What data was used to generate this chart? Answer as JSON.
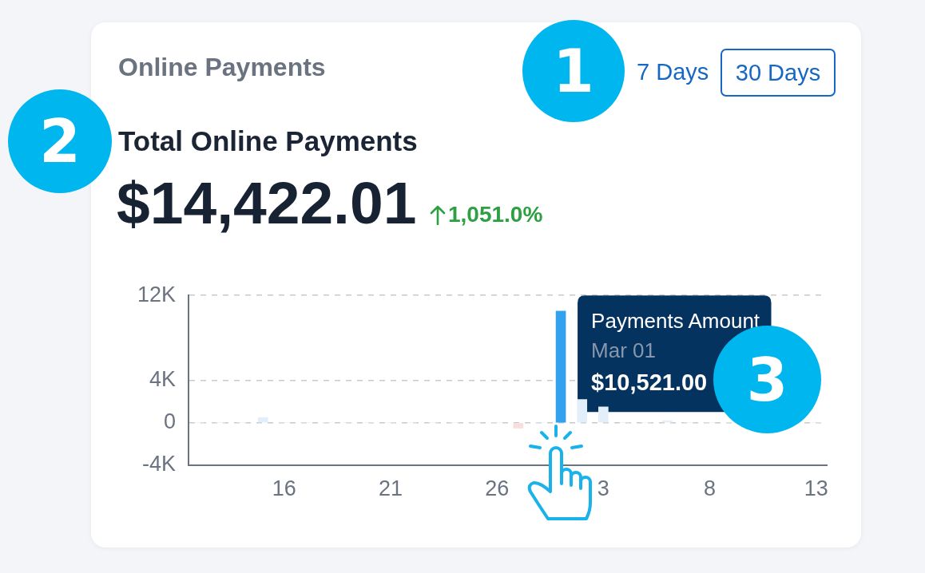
{
  "chart_data": {
    "type": "bar",
    "title": "Online Payments",
    "subtitle": "Total Online Payments",
    "annotations": [
      "7 Days",
      "30 Days",
      "$14,422.01",
      "1,051.0%",
      "Payments Amount",
      "Mar 01",
      "$10,521.00",
      "1",
      "2",
      "3"
    ],
    "categories": [
      null,
      null,
      null,
      null,
      "16",
      null,
      null,
      null,
      null,
      "21",
      null,
      null,
      null,
      null,
      "26",
      null,
      null,
      null,
      null,
      "3",
      null,
      null,
      null,
      null,
      "8",
      null,
      null,
      null,
      null,
      "13"
    ],
    "series": [
      {
        "values": [
          0,
          0,
          0,
          500,
          0,
          0,
          0,
          0,
          0,
          0,
          0,
          0,
          0,
          0,
          0,
          -500,
          0,
          10521,
          2200,
          1500,
          0,
          0,
          200,
          0,
          0,
          0,
          0,
          0,
          0,
          0
        ],
        "colors": [
          "#e2effb",
          "#e2effb",
          "#e2effb",
          "#e2effb",
          "#e2effb",
          "#e2effb",
          "#e2effb",
          "#e2effb",
          "#e2effb",
          "#e2effb",
          "#e2effb",
          "#e2effb",
          "#e2effb",
          "#e2effb",
          "#e2effb",
          "#f9dcdc",
          "#e2effb",
          "#34a1ef",
          "#e2effb",
          "#e2effb",
          "#e2effb",
          "#e2effb",
          "#e2effb",
          "#e2effb",
          "#e2effb",
          "#e2effb",
          "#e2effb",
          "#e2effb",
          "#e2effb",
          "#e2effb"
        ]
      }
    ],
    "ylim": [
      -4000,
      12000
    ],
    "yticks": [
      {
        "value": -4000,
        "label": "-4K"
      },
      {
        "value": 0,
        "label": "0"
      },
      {
        "value": 4000,
        "label": "4K"
      },
      {
        "value": 12000,
        "label": "12K"
      }
    ],
    "grid": "y"
  }
}
